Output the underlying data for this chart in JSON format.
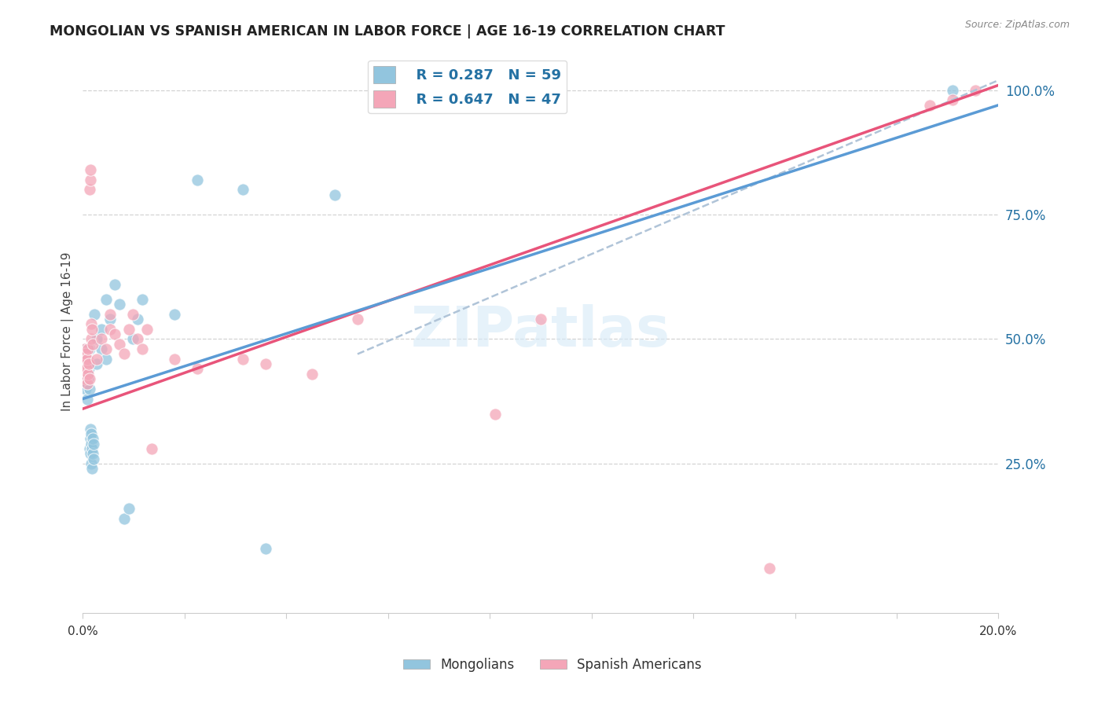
{
  "title": "MONGOLIAN VS SPANISH AMERICAN IN LABOR FORCE | AGE 16-19 CORRELATION CHART",
  "source": "Source: ZipAtlas.com",
  "ylabel_label": "In Labor Force | Age 16-19",
  "legend_mongolian_r": "R = 0.287",
  "legend_mongolian_n": "N = 59",
  "legend_spanish_r": "R = 0.647",
  "legend_spanish_n": "N = 47",
  "mongolian_color": "#92c5de",
  "spanish_color": "#f4a6b8",
  "mongolian_line_color": "#5b9bd5",
  "spanish_line_color": "#e8547a",
  "dashed_line_color": "#b0c4d8",
  "watermark_color": "#d6eaf8",
  "label_color": "#2471a3",
  "title_color": "#222222",
  "source_color": "#888888",
  "right_tick_color": "#2471a3",
  "xlim": [
    0.0,
    0.2
  ],
  "ylim_min": -0.05,
  "ylim_max": 1.08,
  "right_ytick_vals": [
    0.25,
    0.5,
    0.75,
    1.0
  ],
  "right_ytick_labels": [
    "25.0%",
    "50.0%",
    "75.0%",
    "100.0%"
  ],
  "mongolian_pts": [
    [
      0.0002,
      0.44
    ],
    [
      0.0003,
      0.46
    ],
    [
      0.0003,
      0.42
    ],
    [
      0.0004,
      0.48
    ],
    [
      0.0004,
      0.43
    ],
    [
      0.0005,
      0.45
    ],
    [
      0.0005,
      0.41
    ],
    [
      0.0006,
      0.47
    ],
    [
      0.0006,
      0.44
    ],
    [
      0.0006,
      0.4
    ],
    [
      0.0007,
      0.46
    ],
    [
      0.0007,
      0.42
    ],
    [
      0.0008,
      0.44
    ],
    [
      0.0008,
      0.48
    ],
    [
      0.0009,
      0.43
    ],
    [
      0.001,
      0.45
    ],
    [
      0.001,
      0.41
    ],
    [
      0.001,
      0.47
    ],
    [
      0.001,
      0.38
    ],
    [
      0.0012,
      0.46
    ],
    [
      0.0012,
      0.42
    ],
    [
      0.0013,
      0.44
    ],
    [
      0.0014,
      0.4
    ],
    [
      0.0014,
      0.48
    ],
    [
      0.0015,
      0.45
    ],
    [
      0.0015,
      0.28
    ],
    [
      0.0016,
      0.3
    ],
    [
      0.0017,
      0.27
    ],
    [
      0.0017,
      0.32
    ],
    [
      0.0018,
      0.29
    ],
    [
      0.0018,
      0.25
    ],
    [
      0.0019,
      0.31
    ],
    [
      0.002,
      0.28
    ],
    [
      0.002,
      0.24
    ],
    [
      0.0021,
      0.3
    ],
    [
      0.0022,
      0.27
    ],
    [
      0.0023,
      0.26
    ],
    [
      0.0024,
      0.29
    ],
    [
      0.0025,
      0.55
    ],
    [
      0.003,
      0.5
    ],
    [
      0.003,
      0.45
    ],
    [
      0.004,
      0.52
    ],
    [
      0.004,
      0.48
    ],
    [
      0.005,
      0.58
    ],
    [
      0.005,
      0.46
    ],
    [
      0.006,
      0.54
    ],
    [
      0.007,
      0.61
    ],
    [
      0.008,
      0.57
    ],
    [
      0.009,
      0.14
    ],
    [
      0.01,
      0.16
    ],
    [
      0.011,
      0.5
    ],
    [
      0.012,
      0.54
    ],
    [
      0.013,
      0.58
    ],
    [
      0.02,
      0.55
    ],
    [
      0.025,
      0.82
    ],
    [
      0.035,
      0.8
    ],
    [
      0.04,
      0.08
    ],
    [
      0.055,
      0.79
    ],
    [
      0.19,
      1.0
    ]
  ],
  "spanish_pts": [
    [
      0.0002,
      0.44
    ],
    [
      0.0003,
      0.43
    ],
    [
      0.0004,
      0.46
    ],
    [
      0.0005,
      0.48
    ],
    [
      0.0006,
      0.45
    ],
    [
      0.0006,
      0.42
    ],
    [
      0.0007,
      0.47
    ],
    [
      0.0008,
      0.44
    ],
    [
      0.0009,
      0.41
    ],
    [
      0.001,
      0.46
    ],
    [
      0.0011,
      0.48
    ],
    [
      0.0012,
      0.43
    ],
    [
      0.0013,
      0.45
    ],
    [
      0.0014,
      0.42
    ],
    [
      0.0015,
      0.8
    ],
    [
      0.0016,
      0.82
    ],
    [
      0.0017,
      0.84
    ],
    [
      0.0018,
      0.5
    ],
    [
      0.0019,
      0.53
    ],
    [
      0.002,
      0.52
    ],
    [
      0.0022,
      0.49
    ],
    [
      0.003,
      0.46
    ],
    [
      0.004,
      0.5
    ],
    [
      0.005,
      0.48
    ],
    [
      0.006,
      0.52
    ],
    [
      0.006,
      0.55
    ],
    [
      0.007,
      0.51
    ],
    [
      0.008,
      0.49
    ],
    [
      0.009,
      0.47
    ],
    [
      0.01,
      0.52
    ],
    [
      0.011,
      0.55
    ],
    [
      0.012,
      0.5
    ],
    [
      0.013,
      0.48
    ],
    [
      0.014,
      0.52
    ],
    [
      0.015,
      0.28
    ],
    [
      0.02,
      0.46
    ],
    [
      0.025,
      0.44
    ],
    [
      0.035,
      0.46
    ],
    [
      0.04,
      0.45
    ],
    [
      0.05,
      0.43
    ],
    [
      0.06,
      0.54
    ],
    [
      0.09,
      0.35
    ],
    [
      0.1,
      0.54
    ],
    [
      0.15,
      0.04
    ],
    [
      0.185,
      0.97
    ],
    [
      0.19,
      0.98
    ],
    [
      0.195,
      1.0
    ]
  ],
  "mon_line_x0": 0.0,
  "mon_line_y0": 0.38,
  "mon_line_x1": 0.2,
  "mon_line_y1": 0.97,
  "spa_line_x0": 0.0,
  "spa_line_y0": 0.36,
  "spa_line_x1": 0.2,
  "spa_line_y1": 1.01,
  "dash_line_x0": 0.06,
  "dash_line_y0": 0.47,
  "dash_line_x1": 0.2,
  "dash_line_y1": 1.02
}
